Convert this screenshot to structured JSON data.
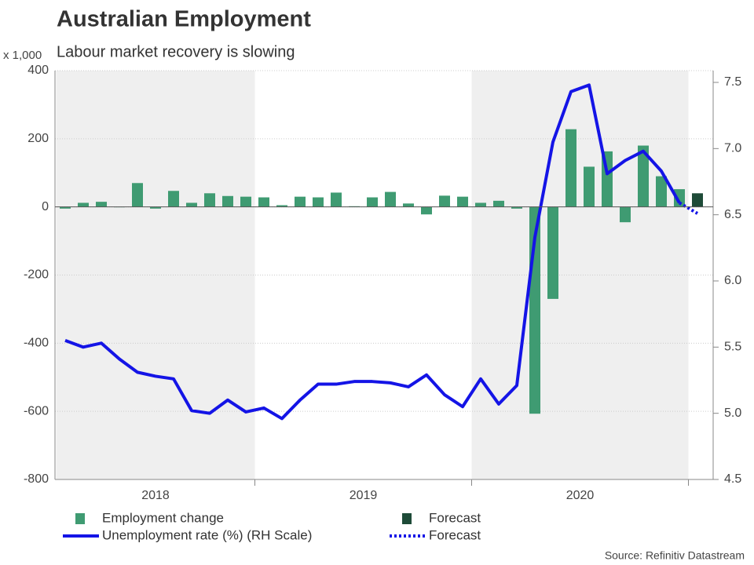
{
  "chart_data": {
    "type": "bar_line",
    "title": "Australian Employment",
    "subtitle": "Labour market recovery is slowing",
    "y_unit_label": "x 1,000",
    "source": "Source: Refinitiv Datastream",
    "x_groups": [
      {
        "label": "2018",
        "count": 11,
        "shaded": true
      },
      {
        "label": "2019",
        "count": 12,
        "shaded": false
      },
      {
        "label": "2020",
        "count": 12,
        "shaded": true
      }
    ],
    "categories": [
      null,
      null,
      null,
      null,
      null,
      null,
      null,
      null,
      null,
      null,
      null,
      null,
      null,
      null,
      null,
      null,
      null,
      null,
      null,
      null,
      null,
      null,
      null,
      null,
      null,
      null,
      null,
      null,
      null,
      null,
      null,
      null,
      null,
      null,
      null,
      null
    ],
    "ylim": [
      -800,
      400
    ],
    "yticks": [
      -800,
      -600,
      -400,
      -200,
      0,
      200,
      400
    ],
    "y2lim": [
      4.5,
      7.5
    ],
    "y2ticks": [
      4.5,
      {
        "value": 5,
        "label": "5.0"
      },
      5.5,
      {
        "value": 6,
        "label": "6.0"
      },
      6.5,
      {
        "value": 7,
        "label": "7.0"
      },
      7.5
    ],
    "grid": true,
    "series": [
      {
        "name": "Employment change",
        "kind": "bar",
        "color": "#3f9b72",
        "values": [
          -5,
          12,
          15,
          0,
          70,
          -5,
          47,
          12,
          40,
          32,
          30,
          28,
          5,
          30,
          28,
          42,
          2,
          28,
          44,
          10,
          -22,
          33,
          30,
          12,
          18,
          -5,
          -607,
          -270,
          228,
          118,
          163,
          -45,
          180,
          90,
          52,
          null
        ]
      },
      {
        "name": "Forecast",
        "kind": "bar",
        "color": "#1e4b38",
        "values": [
          null,
          null,
          null,
          null,
          null,
          null,
          null,
          null,
          null,
          null,
          null,
          null,
          null,
          null,
          null,
          null,
          null,
          null,
          null,
          null,
          null,
          null,
          null,
          null,
          null,
          null,
          null,
          null,
          null,
          null,
          null,
          null,
          null,
          null,
          null,
          40
        ]
      },
      {
        "name": "Unemployment rate (%) (RH Scale)",
        "kind": "line",
        "axis": "y2",
        "color": "#1414e6",
        "values": [
          5.55,
          5.5,
          5.53,
          5.41,
          5.31,
          5.28,
          5.26,
          5.02,
          5.0,
          5.1,
          5.01,
          5.04,
          4.96,
          5.1,
          5.22,
          5.22,
          5.24,
          5.24,
          5.23,
          5.2,
          5.29,
          5.14,
          5.05,
          5.26,
          5.07,
          5.21,
          6.33,
          7.05,
          7.43,
          7.48,
          6.81,
          6.91,
          6.98,
          6.83,
          6.59,
          null
        ]
      },
      {
        "name": "Forecast",
        "kind": "line",
        "axis": "y2",
        "dashed": true,
        "color": "#1414e6",
        "values": [
          null,
          null,
          null,
          null,
          null,
          null,
          null,
          null,
          null,
          null,
          null,
          null,
          null,
          null,
          null,
          null,
          null,
          null,
          null,
          null,
          null,
          null,
          null,
          null,
          null,
          null,
          null,
          null,
          null,
          null,
          null,
          null,
          null,
          null,
          6.59,
          6.51
        ]
      }
    ]
  }
}
